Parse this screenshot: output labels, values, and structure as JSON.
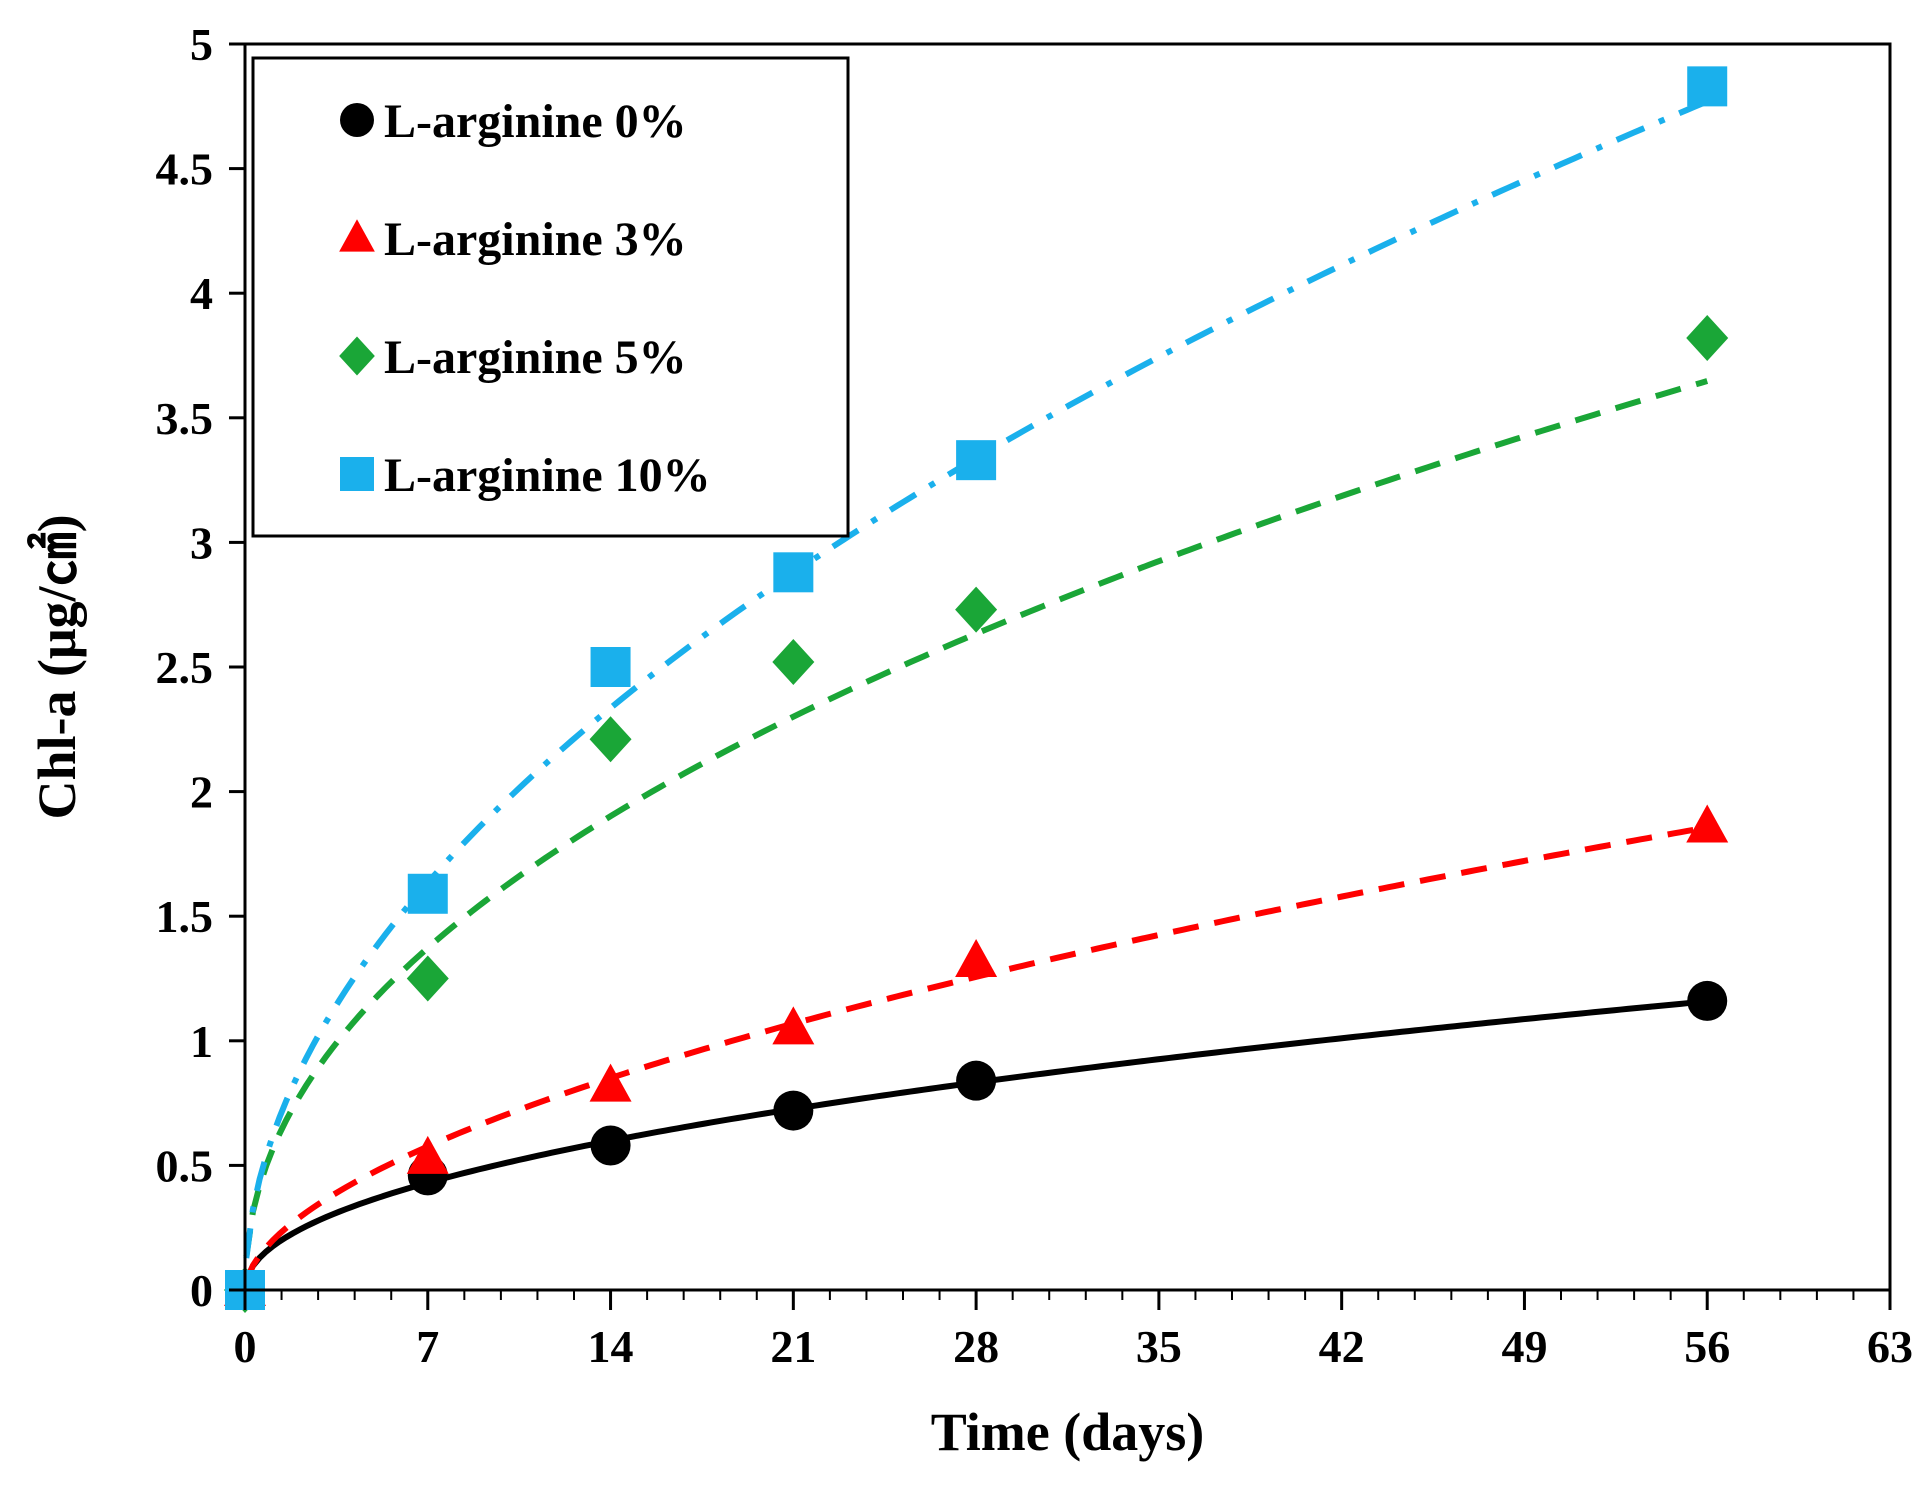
{
  "chart_data": {
    "type": "scatter",
    "title": "",
    "xlabel": "Time (days)",
    "ylabel": "Chl-a (μg/㎠)",
    "xlim": [
      0,
      63
    ],
    "ylim": [
      0,
      5
    ],
    "x_ticks": [
      "0",
      "7",
      "14",
      "21",
      "28",
      "35",
      "42",
      "49",
      "56",
      "63"
    ],
    "y_ticks": [
      "0",
      "0.5",
      "1",
      "1.5",
      "2",
      "2.5",
      "3",
      "3.5",
      "4",
      "4.5",
      "5"
    ],
    "x_minor_step": 1.4,
    "x": [
      0,
      7,
      14,
      21,
      28,
      56
    ],
    "legend_position": "top-left",
    "grid": false,
    "series": [
      {
        "name": "L-arginine 0%",
        "marker": "circle",
        "color": "#000000",
        "line_style": "solid",
        "values": [
          0,
          0.46,
          0.58,
          0.72,
          0.84,
          1.16
        ],
        "fit": {
          "a": 0.1705,
          "b": 0.476
        }
      },
      {
        "name": "L-arginine 3%",
        "marker": "triangle",
        "color": "#ff0000",
        "line_style": "dashed",
        "values": [
          0,
          0.53,
          0.82,
          1.05,
          1.32,
          1.86
        ],
        "fit": {
          "a": 0.1925,
          "b": 0.563
        }
      },
      {
        "name": "L-arginine 5%",
        "marker": "diamond",
        "color": "#1aa637",
        "line_style": "dashed",
        "values": [
          0,
          1.25,
          2.21,
          2.52,
          2.73,
          3.82
        ],
        "fit": {
          "a": 0.55,
          "b": 0.47
        }
      },
      {
        "name": "L-arginine 10%",
        "marker": "square",
        "color": "#1ab0ec",
        "line_style": "dash-dot",
        "values": [
          0,
          1.59,
          2.5,
          2.88,
          3.33,
          4.83
        ],
        "fit": {
          "a": 0.6,
          "b": 0.515
        }
      }
    ]
  }
}
